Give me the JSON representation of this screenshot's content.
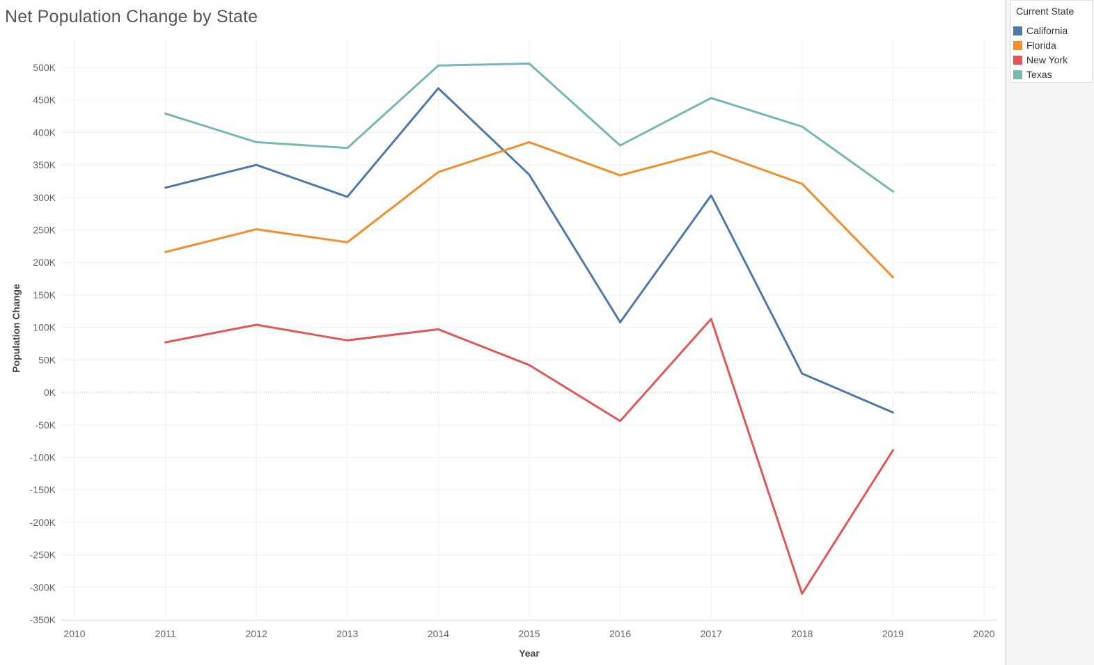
{
  "title": "Net Population Change by State",
  "legend": {
    "title": "Current State",
    "items": [
      {
        "label": "California",
        "color": "#4e79a7"
      },
      {
        "label": "Florida",
        "color": "#f28e2b"
      },
      {
        "label": "New York",
        "color": "#e15759"
      },
      {
        "label": "Texas",
        "color": "#76b7b2"
      }
    ]
  },
  "chart_data": {
    "type": "line",
    "title": "Net Population Change by State",
    "xlabel": "Year",
    "ylabel": "Population Change",
    "x_ticks": [
      "2010",
      "2011",
      "2012",
      "2013",
      "2014",
      "2015",
      "2016",
      "2017",
      "2018",
      "2019",
      "2020"
    ],
    "y_ticks": [
      "500K",
      "450K",
      "400K",
      "350K",
      "300K",
      "250K",
      "200K",
      "150K",
      "100K",
      "50K",
      "0K",
      "-50K",
      "-100K",
      "-150K",
      "-200K",
      "-250K",
      "-300K",
      "-350K"
    ],
    "xlim": [
      2010,
      2020
    ],
    "ylim": [
      -350000,
      500000
    ],
    "grid": true,
    "legend_position": "right",
    "x": [
      2011,
      2012,
      2013,
      2014,
      2015,
      2016,
      2017,
      2018,
      2019
    ],
    "series": [
      {
        "name": "California",
        "color": "#4e79a7",
        "values": [
          315000,
          350000,
          301000,
          468000,
          335000,
          108000,
          303000,
          29000,
          -31000
        ]
      },
      {
        "name": "Florida",
        "color": "#f28e2b",
        "values": [
          216000,
          251000,
          231000,
          339000,
          385000,
          334000,
          371000,
          321000,
          177000
        ]
      },
      {
        "name": "New York",
        "color": "#e15759",
        "values": [
          77000,
          104000,
          80000,
          97000,
          42000,
          -44000,
          113000,
          -310000,
          -89000
        ]
      },
      {
        "name": "Texas",
        "color": "#76b7b2",
        "values": [
          429000,
          385000,
          376000,
          503000,
          506000,
          380000,
          453000,
          409000,
          309000
        ]
      }
    ]
  }
}
